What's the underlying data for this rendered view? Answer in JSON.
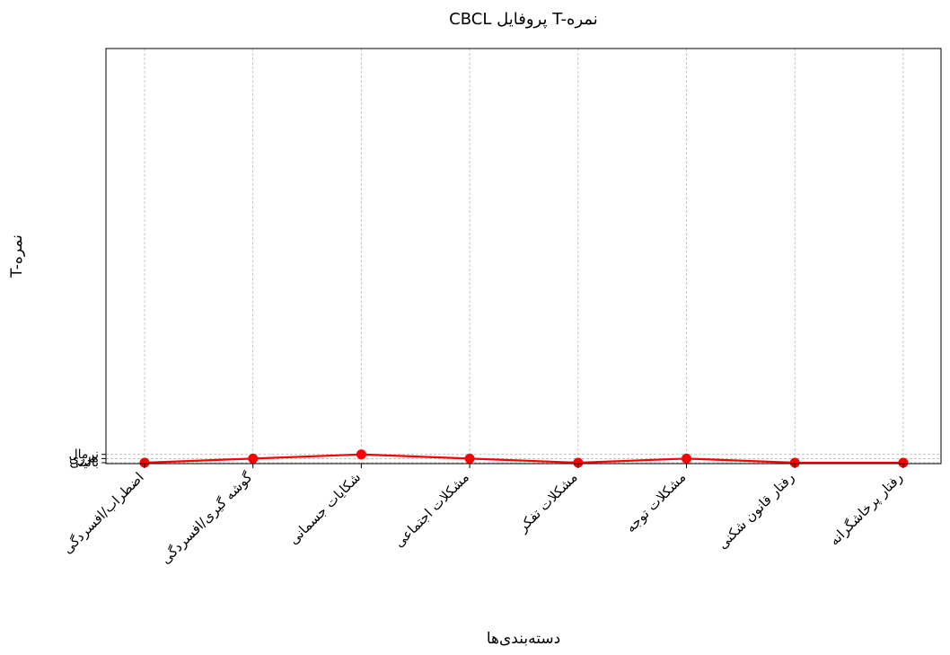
{
  "chart_data": {
    "type": "line",
    "title": "CBCL پروفایل T-نمره",
    "xlabel": "دسته‌بندی‌ها",
    "ylabel": "T-نمره",
    "categories": [
      "اضطراب/افسردگی",
      "گوشه گیری/افسردگی",
      "شکایات جسمانی",
      "مشکلات اجتماعی",
      "مشکلات تفکر",
      "مشکلات توجه",
      "رفتار قانون شکنی",
      "رفتار پرخاشگرانه"
    ],
    "series": [
      {
        "values": [
          0,
          1,
          2,
          1,
          0,
          1,
          0,
          0
        ],
        "color": "#ff0000"
      }
    ],
    "yticks": [
      {
        "value": 0,
        "label": "بالینی"
      },
      {
        "value": 1,
        "label": "مرزی"
      },
      {
        "value": 2,
        "label": "نرمال"
      }
    ],
    "ylim": [
      0,
      100
    ],
    "grid": true,
    "grid_style": "dashed"
  }
}
